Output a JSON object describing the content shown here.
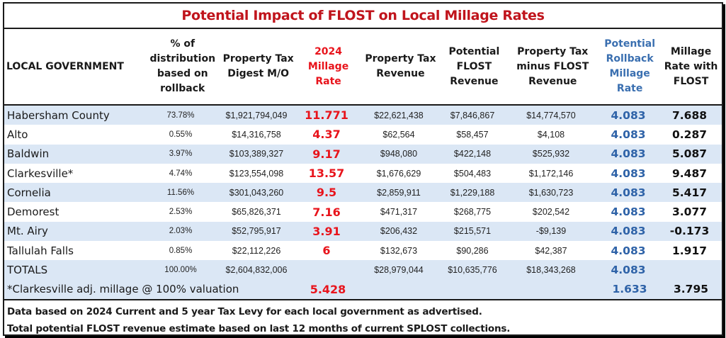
{
  "title": "Potential Impact of FLOST on Local Millage Rates",
  "columns": [
    {
      "lines": [
        "LOCAL GOVERNMENT"
      ]
    },
    {
      "lines": [
        "% of",
        "distribution",
        "based on",
        "rollback"
      ]
    },
    {
      "lines": [
        "Property Tax",
        "Digest M/O"
      ]
    },
    {
      "lines": [
        "2024",
        "Millage",
        "Rate"
      ]
    },
    {
      "lines": [
        "Property Tax",
        "Revenue"
      ]
    },
    {
      "lines": [
        "Potential",
        "FLOST",
        "Revenue"
      ]
    },
    {
      "lines": [
        "Property Tax",
        "minus FLOST",
        "Revenue"
      ]
    },
    {
      "lines": [
        "Potential",
        "Rollback",
        "Millage",
        "Rate"
      ]
    },
    {
      "lines": [
        "Millage",
        "Rate with",
        "FLOST"
      ]
    }
  ],
  "rows": [
    {
      "name": "Habersham County",
      "pct": "73.78%",
      "digest": "$1,921,794,049",
      "millage": "11.771",
      "revenue": "$22,621,438",
      "flost": "$7,846,867",
      "net": "$14,774,570",
      "rollback": "4.083",
      "with_flost": "7.688"
    },
    {
      "name": "Alto",
      "pct": "0.55%",
      "digest": "$14,316,758",
      "millage": "4.37",
      "revenue": "$62,564",
      "flost": "$58,457",
      "net": "$4,108",
      "rollback": "4.083",
      "with_flost": "0.287"
    },
    {
      "name": "Baldwin",
      "pct": "3.97%",
      "digest": "$103,389,327",
      "millage": "9.17",
      "revenue": "$948,080",
      "flost": "$422,148",
      "net": "$525,932",
      "rollback": "4.083",
      "with_flost": "5.087"
    },
    {
      "name": "Clarkesville*",
      "pct": "4.74%",
      "digest": "$123,554,098",
      "millage": "13.57",
      "revenue": "$1,676,629",
      "flost": "$504,483",
      "net": "$1,172,146",
      "rollback": "4.083",
      "with_flost": "9.487"
    },
    {
      "name": "Cornelia",
      "pct": "11.56%",
      "digest": "$301,043,260",
      "millage": "9.5",
      "revenue": "$2,859,911",
      "flost": "$1,229,188",
      "net": "$1,630,723",
      "rollback": "4.083",
      "with_flost": "5.417"
    },
    {
      "name": "Demorest",
      "pct": "2.53%",
      "digest": "$65,826,371",
      "millage": "7.16",
      "revenue": "$471,317",
      "flost": "$268,775",
      "net": "$202,542",
      "rollback": "4.083",
      "with_flost": "3.077"
    },
    {
      "name": "Mt. Airy",
      "pct": "2.03%",
      "digest": "$52,795,917",
      "millage": "3.91",
      "revenue": "$206,432",
      "flost": "$215,571",
      "net": "-$9,139",
      "rollback": "4.083",
      "with_flost": "-0.173"
    },
    {
      "name": "Tallulah Falls",
      "pct": "0.85%",
      "digest": "$22,112,226",
      "millage": "6",
      "revenue": "$132,673",
      "flost": "$90,286",
      "net": "$42,387",
      "rollback": "4.083",
      "with_flost": "1.917"
    },
    {
      "name": "TOTALS",
      "pct": "100.00%",
      "digest": "$2,604,832,006",
      "millage": "",
      "revenue": "$28,979,044",
      "flost": "$10,635,776",
      "net": "$18,343,268",
      "rollback": "4.083",
      "with_flost": ""
    }
  ],
  "adjustment": {
    "label": "*Clarkesville adj. millage @ 100% valuation",
    "millage": "5.428",
    "rollback": "1.633",
    "with_flost": "3.795"
  },
  "footnotes": [
    "Data based on 2024 Current and 5 year Tax Levy for each local government as advertised.",
    "Total potential FLOST revenue estimate based on last 12 months of current SPLOST collections."
  ],
  "colors": {
    "title": "#c0141c",
    "millage": "#e8141c",
    "rollback": "#2f63a8",
    "row_shade": "#dbe7f5"
  }
}
